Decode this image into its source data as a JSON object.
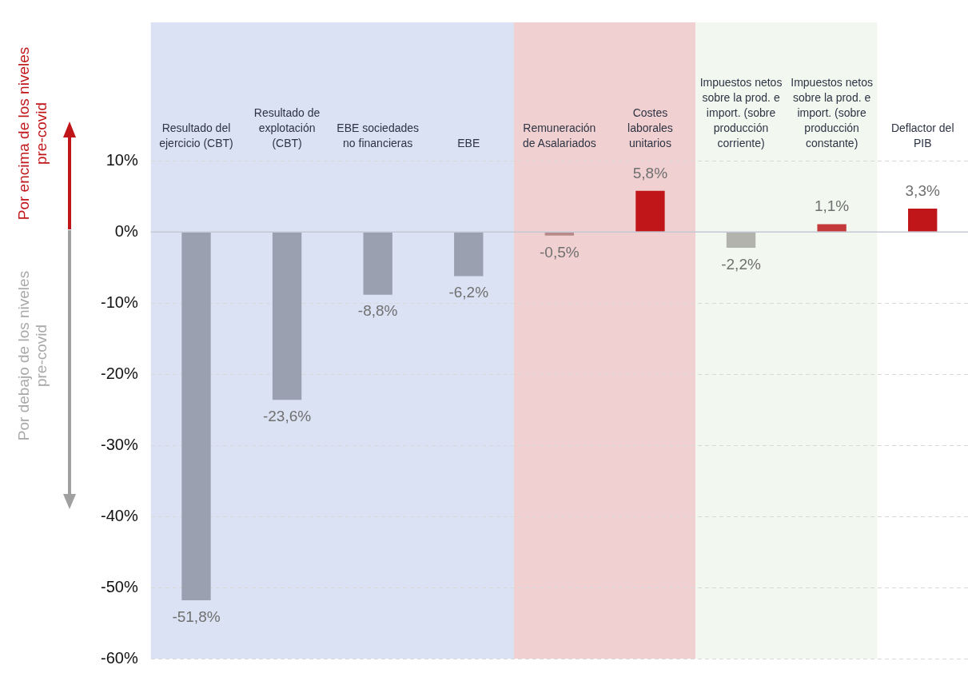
{
  "chart_data": {
    "type": "bar",
    "categories": [
      "Resultado del ejercicio (CBT)",
      "Resultado de explotación (CBT)",
      "EBE sociedades no financieras",
      "EBE",
      "Remuneración de Asalariados",
      "Costes laborales unitarios",
      "Impuestos netos sobre la prod. e import. (sobre producción corriente)",
      "Impuestos netos sobre la prod. e import. (sobre producción constante)",
      "Deflactor del PIB"
    ],
    "values": [
      -51.8,
      -23.6,
      -8.8,
      -6.2,
      -0.5,
      5.8,
      -2.2,
      1.1,
      3.3
    ],
    "colors": [
      "#9aa0b0",
      "#9aa0b0",
      "#9aa0b0",
      "#9aa0b0",
      "#b88a8a",
      "#c0161a",
      "#b3b3ad",
      "#c43a3a",
      "#c0161a"
    ],
    "value_labels": [
      "-51,8%",
      "-23,6%",
      "-8,8%",
      "-6,2%",
      "-0,5%",
      "5,8%",
      "-2,2%",
      "1,1%",
      "3,3%"
    ],
    "ylim": [
      -60,
      29.5
    ],
    "yticks": [
      {
        "value": -60,
        "label": "-60%"
      },
      {
        "value": -50,
        "label": "-50%"
      },
      {
        "value": -40,
        "label": "-40%"
      },
      {
        "value": -30,
        "label": "-30%"
      },
      {
        "value": -20,
        "label": "-20%"
      },
      {
        "value": -10,
        "label": "-10%"
      },
      {
        "value": 0,
        "label": "0%"
      },
      {
        "value": 10,
        "label": "10%"
      }
    ],
    "grid": "y",
    "legend": false,
    "bands": [
      {
        "axis": "x",
        "from": "Resultado del ejercicio (CBT)",
        "to": "EBE",
        "color": "#dae2f3"
      },
      {
        "axis": "x",
        "from": "Remuneración de Asalariados",
        "to": "Costes laborales unitarios",
        "color": "#f0d0d0"
      },
      {
        "axis": "x",
        "from": "Impuestos netos sobre la prod. e import. (sobre producción corriente)",
        "to": "Impuestos netos sobre la prod. e import. (sobre producción constante)",
        "color": "#f2f7ef"
      }
    ],
    "annotations": [
      "Por encima de los niveles pre-covid",
      "Por debajo de los niveles pre-covid"
    ]
  }
}
